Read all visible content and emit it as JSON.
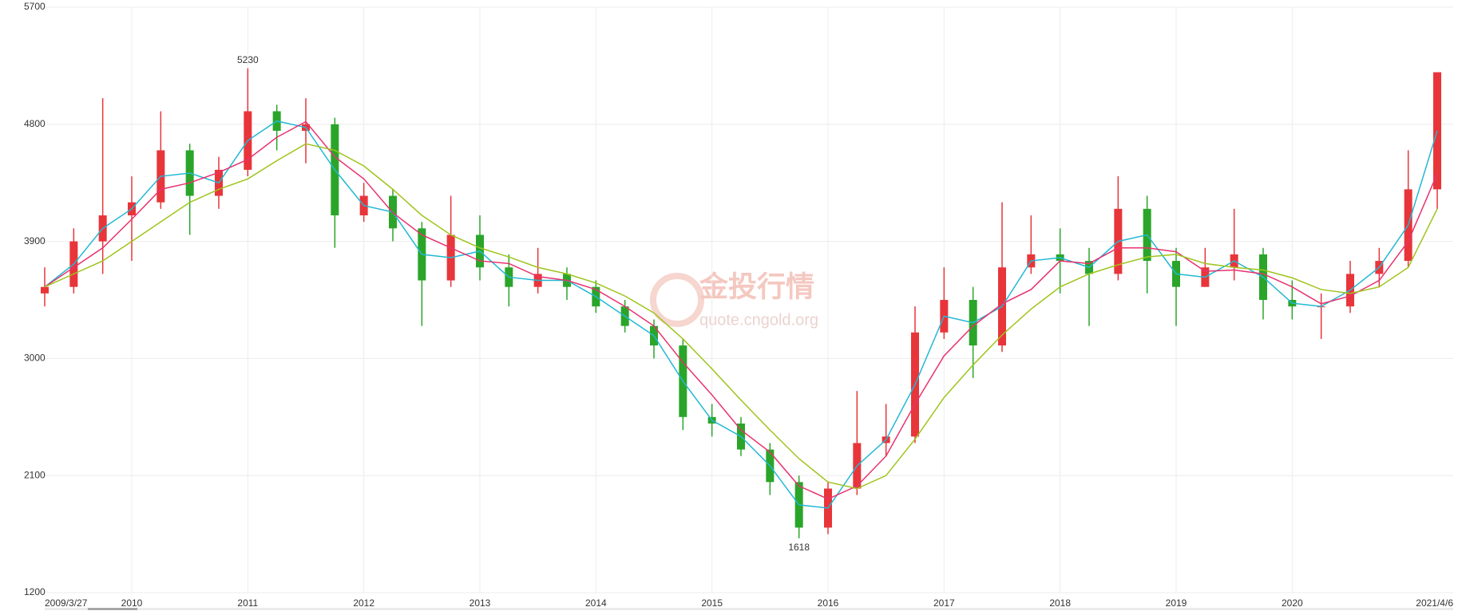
{
  "chart_data": {
    "type": "candlestick",
    "categories": [
      "2009/3/27",
      null,
      null,
      "2010",
      null,
      null,
      null,
      "2011",
      null,
      null,
      null,
      "2012",
      null,
      null,
      null,
      "2013",
      null,
      null,
      null,
      "2014",
      null,
      null,
      null,
      "2015",
      null,
      null,
      null,
      "2016",
      null,
      null,
      null,
      "2017",
      null,
      null,
      null,
      "2018",
      null,
      null,
      null,
      "2019",
      null,
      null,
      null,
      "2020",
      null,
      null,
      null,
      null,
      "2021/4/6"
    ],
    "open": [
      3500,
      3550,
      3900,
      4100,
      4200,
      4600,
      4250,
      4450,
      4900,
      4750,
      4800,
      4100,
      4250,
      4000,
      3600,
      3950,
      3700,
      3550,
      3650,
      3550,
      3400,
      3250,
      3100,
      2550,
      2500,
      2300,
      2050,
      1700,
      2000,
      2350,
      2400,
      3200,
      3450,
      3100,
      3700,
      3800,
      3750,
      3650,
      4150,
      3750,
      3550,
      3700,
      3800,
      3450,
      3400,
      3400,
      3650,
      3750,
      4300
    ],
    "high": [
      3700,
      4000,
      5000,
      4400,
      4900,
      4650,
      4550,
      5230,
      4950,
      5000,
      4850,
      4350,
      4300,
      4050,
      4250,
      4100,
      3800,
      3850,
      3700,
      3600,
      3450,
      3300,
      3150,
      2650,
      2550,
      2350,
      2100,
      2050,
      2750,
      2650,
      3400,
      3700,
      3550,
      4200,
      4100,
      4000,
      3850,
      4400,
      4250,
      3850,
      3850,
      4150,
      3850,
      3600,
      3500,
      3750,
      3850,
      4600,
      5200
    ],
    "low": [
      3400,
      3500,
      3650,
      3750,
      4150,
      3950,
      4150,
      4400,
      4600,
      4500,
      3850,
      4050,
      3900,
      3250,
      3550,
      3600,
      3400,
      3500,
      3450,
      3350,
      3200,
      3000,
      2450,
      2400,
      2250,
      1950,
      1618,
      1650,
      1950,
      2250,
      2350,
      3150,
      2850,
      3050,
      3650,
      3500,
      3250,
      3600,
      3500,
      3250,
      3550,
      3600,
      3300,
      3300,
      3150,
      3350,
      3550,
      3700,
      4150
    ],
    "close": [
      3550,
      3900,
      4100,
      4200,
      4600,
      4250,
      4450,
      4900,
      4750,
      4800,
      4100,
      4250,
      4000,
      3600,
      3950,
      3700,
      3550,
      3650,
      3550,
      3400,
      3250,
      3100,
      2550,
      2500,
      2300,
      2050,
      1700,
      2000,
      2350,
      2400,
      3200,
      3450,
      3100,
      3700,
      3800,
      3750,
      3650,
      4150,
      3750,
      3550,
      3700,
      3800,
      3450,
      3400,
      3400,
      3650,
      3750,
      4300,
      5200
    ],
    "up_color": "#e8353a",
    "down_color": "#2aa52a",
    "lines": [
      {
        "color": "#22b8d4",
        "values": [
          3550,
          3725,
          4000,
          4150,
          4400,
          4425,
          4350,
          4675,
          4825,
          4775,
          4450,
          4175,
          4125,
          3800,
          3775,
          3825,
          3625,
          3600,
          3600,
          3475,
          3325,
          3175,
          2825,
          2525,
          2400,
          2175,
          1875,
          1850,
          2175,
          2375,
          2800,
          3325,
          3275,
          3400,
          3750,
          3775,
          3700,
          3900,
          3950,
          3650,
          3625,
          3750,
          3625,
          3425,
          3400,
          3525,
          3700,
          4025,
          4750
        ]
      },
      {
        "color": "#e8326e",
        "values": [
          3550,
          3700,
          3850,
          4070,
          4300,
          4350,
          4430,
          4530,
          4700,
          4820,
          4550,
          4380,
          4120,
          3950,
          3850,
          3750,
          3730,
          3630,
          3600,
          3530,
          3400,
          3250,
          2970,
          2720,
          2450,
          2280,
          2020,
          1920,
          2020,
          2250,
          2650,
          3020,
          3250,
          3420,
          3530,
          3750,
          3730,
          3850,
          3850,
          3820,
          3670,
          3680,
          3650,
          3550,
          3420,
          3480,
          3600,
          3900,
          4420
        ]
      },
      {
        "color": "#9ec41c",
        "values": [
          3550,
          3650,
          3750,
          3900,
          4050,
          4200,
          4300,
          4380,
          4520,
          4650,
          4600,
          4480,
          4300,
          4100,
          3950,
          3850,
          3780,
          3700,
          3650,
          3580,
          3480,
          3350,
          3150,
          2920,
          2680,
          2450,
          2230,
          2050,
          2000,
          2100,
          2380,
          2700,
          2950,
          3180,
          3380,
          3550,
          3650,
          3720,
          3780,
          3800,
          3730,
          3700,
          3680,
          3620,
          3530,
          3500,
          3550,
          3700,
          4150
        ]
      }
    ],
    "ylim": [
      1200,
      5700
    ],
    "yticks": [
      1200,
      2100,
      3000,
      3900,
      4800,
      5700
    ],
    "grid": true,
    "watermark": [
      "金投行情",
      "quote.cngold.org"
    ]
  }
}
